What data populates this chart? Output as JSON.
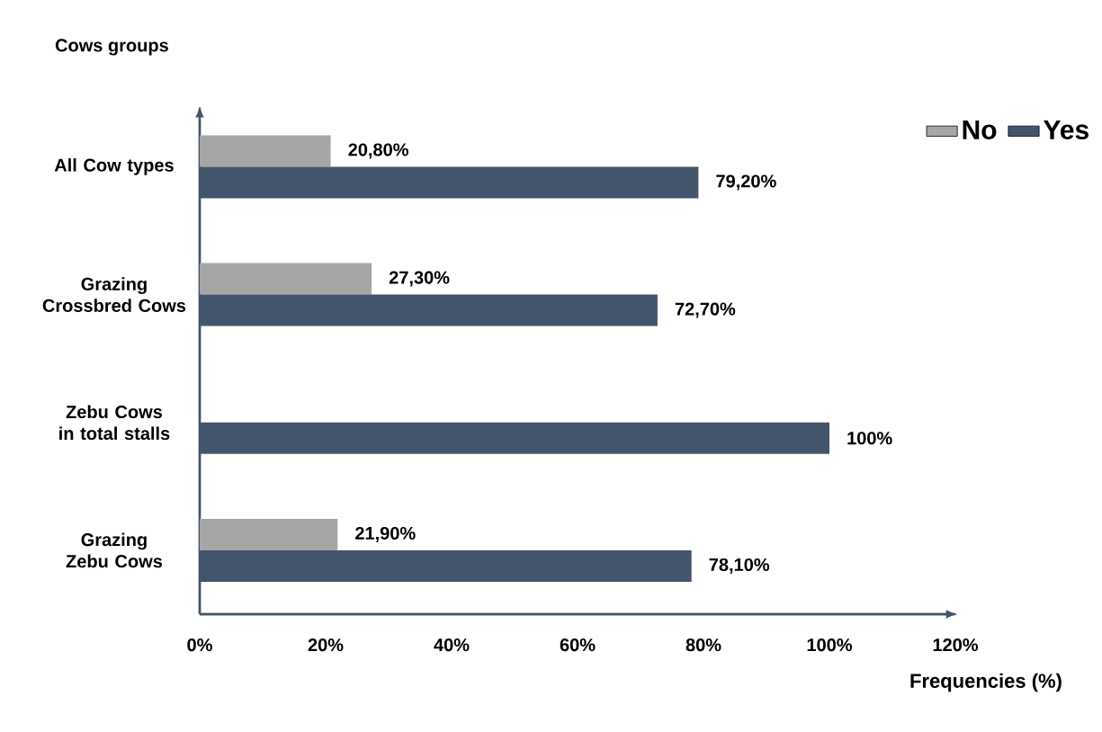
{
  "chart_data": {
    "type": "bar",
    "orientation": "horizontal",
    "ylabel": "Cows groups",
    "xlabel": "Frequencies (%)",
    "categories": [
      "All Cow types",
      "Grazing Crossbred Cows",
      "Zebu Cows in total stalls",
      "Grazing Zebu Cows"
    ],
    "series": [
      {
        "name": "No",
        "color": "#a6a6a6",
        "values": [
          20.8,
          27.3,
          null,
          21.9
        ],
        "value_labels": [
          "20,80%",
          "27,30%",
          null,
          "21,90%"
        ]
      },
      {
        "name": "Yes",
        "color": "#44546a",
        "values": [
          79.2,
          72.7,
          100,
          78.1
        ],
        "value_labels": [
          "79,20%",
          "72,70%",
          "100%",
          "78,10%"
        ]
      }
    ],
    "xlim": [
      0,
      120
    ],
    "xticks": [
      {
        "value": 0,
        "label": "0%"
      },
      {
        "value": 20,
        "label": "20%"
      },
      {
        "value": 40,
        "label": "40%"
      },
      {
        "value": 60,
        "label": "60%"
      },
      {
        "value": 80,
        "label": "80%"
      },
      {
        "value": 100,
        "label": "100%"
      },
      {
        "value": 120,
        "label": "120%"
      }
    ],
    "legend": "top right"
  }
}
